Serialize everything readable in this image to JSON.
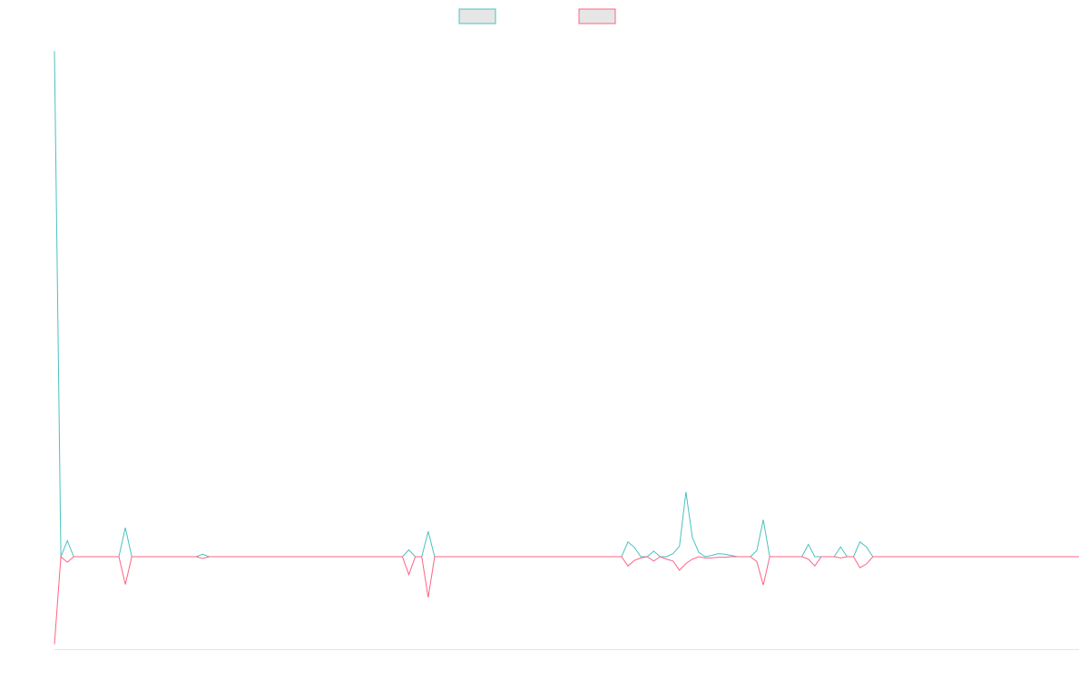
{
  "chart_data": {
    "type": "line",
    "title": "",
    "xlabel": "",
    "ylabel": "",
    "x_count": 160,
    "ylim": [
      -0.15,
      0.85
    ],
    "grid": false,
    "legend_placement": "top-center",
    "series": [
      {
        "color": "#4bc0c0",
        "fill": "#e6e6e6",
        "points": [
          [
            0,
            0.82
          ],
          [
            1,
            0.0
          ],
          [
            2,
            0.026
          ],
          [
            3,
            0.0
          ],
          [
            4,
            0
          ],
          [
            5,
            0
          ],
          [
            6,
            0
          ],
          [
            7,
            0
          ],
          [
            8,
            0
          ],
          [
            9,
            0
          ],
          [
            10,
            0
          ],
          [
            11,
            0.047
          ],
          [
            12,
            0
          ],
          [
            13,
            0
          ],
          [
            14,
            0
          ],
          [
            15,
            0
          ],
          [
            16,
            0
          ],
          [
            17,
            0
          ],
          [
            18,
            0
          ],
          [
            19,
            0
          ],
          [
            20,
            0
          ],
          [
            21,
            0
          ],
          [
            22,
            0
          ],
          [
            23,
            0.004
          ],
          [
            24,
            0
          ],
          [
            25,
            0
          ],
          [
            26,
            0
          ],
          [
            27,
            0
          ],
          [
            28,
            0
          ],
          [
            29,
            0
          ],
          [
            30,
            0
          ],
          [
            31,
            0
          ],
          [
            32,
            0
          ],
          [
            33,
            0
          ],
          [
            34,
            0
          ],
          [
            35,
            0
          ],
          [
            36,
            0
          ],
          [
            37,
            0
          ],
          [
            38,
            0
          ],
          [
            39,
            0
          ],
          [
            40,
            0
          ],
          [
            41,
            0
          ],
          [
            42,
            0
          ],
          [
            43,
            0
          ],
          [
            44,
            0
          ],
          [
            45,
            0
          ],
          [
            46,
            0
          ],
          [
            47,
            0
          ],
          [
            48,
            0
          ],
          [
            49,
            0
          ],
          [
            50,
            0
          ],
          [
            51,
            0
          ],
          [
            52,
            0
          ],
          [
            53,
            0
          ],
          [
            54,
            0
          ],
          [
            55,
            0.011
          ],
          [
            56,
            0
          ],
          [
            57,
            0
          ],
          [
            58,
            0.041
          ],
          [
            59,
            0
          ],
          [
            60,
            0
          ],
          [
            61,
            0
          ],
          [
            62,
            0
          ],
          [
            63,
            0
          ],
          [
            64,
            0
          ],
          [
            65,
            0
          ],
          [
            66,
            0
          ],
          [
            67,
            0
          ],
          [
            68,
            0
          ],
          [
            69,
            0
          ],
          [
            70,
            0
          ],
          [
            71,
            0
          ],
          [
            72,
            0
          ],
          [
            73,
            0
          ],
          [
            74,
            0
          ],
          [
            75,
            0
          ],
          [
            76,
            0
          ],
          [
            77,
            0
          ],
          [
            78,
            0
          ],
          [
            79,
            0
          ],
          [
            80,
            0
          ],
          [
            81,
            0
          ],
          [
            82,
            0
          ],
          [
            83,
            0
          ],
          [
            84,
            0
          ],
          [
            85,
            0
          ],
          [
            86,
            0
          ],
          [
            87,
            0
          ],
          [
            88,
            0
          ],
          [
            89,
            0.024
          ],
          [
            90,
            0.015
          ],
          [
            91,
            0
          ],
          [
            92,
            0
          ],
          [
            93,
            0.009
          ],
          [
            94,
            0
          ],
          [
            95,
            0
          ],
          [
            96,
            0.005
          ],
          [
            97,
            0.017
          ],
          [
            98,
            0.105
          ],
          [
            99,
            0.031
          ],
          [
            100,
            0.007
          ],
          [
            101,
            0
          ],
          [
            102,
            0.002
          ],
          [
            103,
            0.005
          ],
          [
            104,
            0.004
          ],
          [
            105,
            0.002
          ],
          [
            106,
            0
          ],
          [
            107,
            0
          ],
          [
            108,
            0
          ],
          [
            109,
            0.01
          ],
          [
            110,
            0.06
          ],
          [
            111,
            0
          ],
          [
            112,
            0
          ],
          [
            113,
            0
          ],
          [
            114,
            0
          ],
          [
            115,
            0
          ],
          [
            116,
            0
          ],
          [
            117,
            0.02
          ],
          [
            118,
            0
          ],
          [
            119,
            0
          ],
          [
            120,
            0
          ],
          [
            121,
            0
          ],
          [
            122,
            0.016
          ],
          [
            123,
            0
          ],
          [
            124,
            0
          ],
          [
            125,
            0.024
          ],
          [
            126,
            0.016
          ],
          [
            127,
            0
          ],
          [
            128,
            0
          ],
          [
            129,
            0
          ],
          [
            130,
            0
          ],
          [
            131,
            0
          ],
          [
            132,
            0
          ],
          [
            133,
            0
          ],
          [
            134,
            0
          ],
          [
            135,
            0
          ],
          [
            136,
            0
          ],
          [
            137,
            0
          ],
          [
            138,
            0
          ],
          [
            139,
            0
          ],
          [
            140,
            0
          ],
          [
            141,
            0
          ],
          [
            142,
            0
          ],
          [
            143,
            0
          ],
          [
            144,
            0
          ],
          [
            145,
            0
          ],
          [
            146,
            0
          ],
          [
            147,
            0
          ],
          [
            148,
            0
          ],
          [
            149,
            0
          ],
          [
            150,
            0
          ],
          [
            151,
            0
          ],
          [
            152,
            0
          ],
          [
            153,
            0
          ],
          [
            154,
            0
          ],
          [
            155,
            0
          ],
          [
            156,
            0
          ],
          [
            157,
            0
          ],
          [
            158,
            0
          ],
          [
            159,
            0
          ]
        ]
      },
      {
        "color": "#ff6384",
        "fill": "#e6e6e6",
        "points": [
          [
            0,
            -0.142
          ],
          [
            1,
            0.0
          ],
          [
            2,
            -0.009
          ],
          [
            3,
            0.0
          ],
          [
            4,
            0
          ],
          [
            5,
            0
          ],
          [
            6,
            0
          ],
          [
            7,
            0
          ],
          [
            8,
            0
          ],
          [
            9,
            0
          ],
          [
            10,
            0
          ],
          [
            11,
            -0.045
          ],
          [
            12,
            0
          ],
          [
            13,
            0
          ],
          [
            14,
            0
          ],
          [
            15,
            0
          ],
          [
            16,
            0
          ],
          [
            17,
            0
          ],
          [
            18,
            0
          ],
          [
            19,
            0
          ],
          [
            20,
            0
          ],
          [
            21,
            0
          ],
          [
            22,
            0
          ],
          [
            23,
            -0.003
          ],
          [
            24,
            0
          ],
          [
            25,
            0
          ],
          [
            26,
            0
          ],
          [
            27,
            0
          ],
          [
            28,
            0
          ],
          [
            29,
            0
          ],
          [
            30,
            0
          ],
          [
            31,
            0
          ],
          [
            32,
            0
          ],
          [
            33,
            0
          ],
          [
            34,
            0
          ],
          [
            35,
            0
          ],
          [
            36,
            0
          ],
          [
            37,
            0
          ],
          [
            38,
            0
          ],
          [
            39,
            0
          ],
          [
            40,
            0
          ],
          [
            41,
            0
          ],
          [
            42,
            0
          ],
          [
            43,
            0
          ],
          [
            44,
            0
          ],
          [
            45,
            0
          ],
          [
            46,
            0
          ],
          [
            47,
            0
          ],
          [
            48,
            0
          ],
          [
            49,
            0
          ],
          [
            50,
            0
          ],
          [
            51,
            0
          ],
          [
            52,
            0
          ],
          [
            53,
            0
          ],
          [
            54,
            0
          ],
          [
            55,
            -0.029
          ],
          [
            56,
            0
          ],
          [
            57,
            0
          ],
          [
            58,
            -0.066
          ],
          [
            59,
            0
          ],
          [
            60,
            0
          ],
          [
            61,
            0
          ],
          [
            62,
            0
          ],
          [
            63,
            0
          ],
          [
            64,
            0
          ],
          [
            65,
            0
          ],
          [
            66,
            0
          ],
          [
            67,
            0
          ],
          [
            68,
            0
          ],
          [
            69,
            0
          ],
          [
            70,
            0
          ],
          [
            71,
            0
          ],
          [
            72,
            0
          ],
          [
            73,
            0
          ],
          [
            74,
            0
          ],
          [
            75,
            0
          ],
          [
            76,
            0
          ],
          [
            77,
            0
          ],
          [
            78,
            0
          ],
          [
            79,
            0
          ],
          [
            80,
            0
          ],
          [
            81,
            0
          ],
          [
            82,
            0
          ],
          [
            83,
            0
          ],
          [
            84,
            0
          ],
          [
            85,
            0
          ],
          [
            86,
            0
          ],
          [
            87,
            0
          ],
          [
            88,
            0
          ],
          [
            89,
            -0.015
          ],
          [
            90,
            -0.006
          ],
          [
            91,
            -0.002
          ],
          [
            92,
            0
          ],
          [
            93,
            -0.007
          ],
          [
            94,
            0
          ],
          [
            95,
            -0.004
          ],
          [
            96,
            -0.007
          ],
          [
            97,
            -0.022
          ],
          [
            98,
            -0.011
          ],
          [
            99,
            -0.004
          ],
          [
            100,
            0
          ],
          [
            101,
            -0.002
          ],
          [
            102,
            -0.002
          ],
          [
            103,
            -0.001
          ],
          [
            104,
            -0.001
          ],
          [
            105,
            0
          ],
          [
            106,
            0
          ],
          [
            107,
            0
          ],
          [
            108,
            0
          ],
          [
            109,
            -0.008
          ],
          [
            110,
            -0.046
          ],
          [
            111,
            0
          ],
          [
            112,
            0
          ],
          [
            113,
            0
          ],
          [
            114,
            0
          ],
          [
            115,
            0
          ],
          [
            116,
            0
          ],
          [
            117,
            -0.004
          ],
          [
            118,
            -0.015
          ],
          [
            119,
            0
          ],
          [
            120,
            0
          ],
          [
            121,
            0
          ],
          [
            122,
            -0.002
          ],
          [
            123,
            0
          ],
          [
            124,
            0
          ],
          [
            125,
            -0.018
          ],
          [
            126,
            -0.012
          ],
          [
            127,
            0
          ],
          [
            128,
            0
          ],
          [
            129,
            0
          ],
          [
            130,
            0
          ],
          [
            131,
            0
          ],
          [
            132,
            0
          ],
          [
            133,
            0
          ],
          [
            134,
            0
          ],
          [
            135,
            0
          ],
          [
            136,
            0
          ],
          [
            137,
            0
          ],
          [
            138,
            0
          ],
          [
            139,
            0
          ],
          [
            140,
            0
          ],
          [
            141,
            0
          ],
          [
            142,
            0
          ],
          [
            143,
            0
          ],
          [
            144,
            0
          ],
          [
            145,
            0
          ],
          [
            146,
            0
          ],
          [
            147,
            0
          ],
          [
            148,
            0
          ],
          [
            149,
            0
          ],
          [
            150,
            0
          ],
          [
            151,
            0
          ],
          [
            152,
            0
          ],
          [
            153,
            0
          ],
          [
            154,
            0
          ],
          [
            155,
            0
          ],
          [
            156,
            0
          ],
          [
            157,
            0
          ],
          [
            158,
            0
          ],
          [
            159,
            0
          ]
        ]
      }
    ]
  }
}
